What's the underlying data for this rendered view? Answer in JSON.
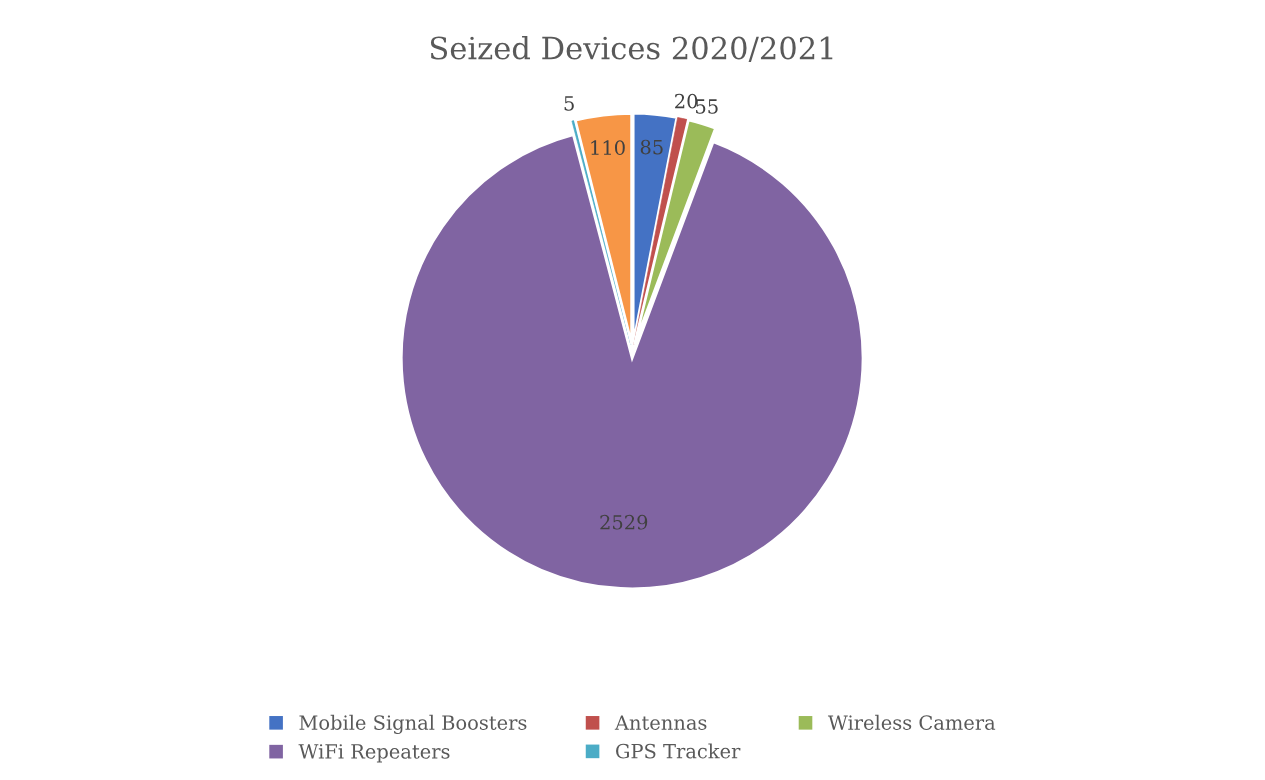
{
  "chart_data": {
    "type": "pie",
    "title": "Seized Devices 2020/2021",
    "categories": [
      "Mobile Signal Boosters",
      "Antennas",
      "Wireless Camera",
      "WiFi Repeaters",
      "GPS Tracker",
      null
    ],
    "values": [
      85,
      20,
      55,
      2529,
      5,
      110
    ],
    "colors": [
      "#4472c4",
      "#c0504d",
      "#9bbb59",
      "#8064a2",
      "#4bacc6",
      "#f79646"
    ],
    "data_labels": true,
    "legend": "bottom"
  }
}
